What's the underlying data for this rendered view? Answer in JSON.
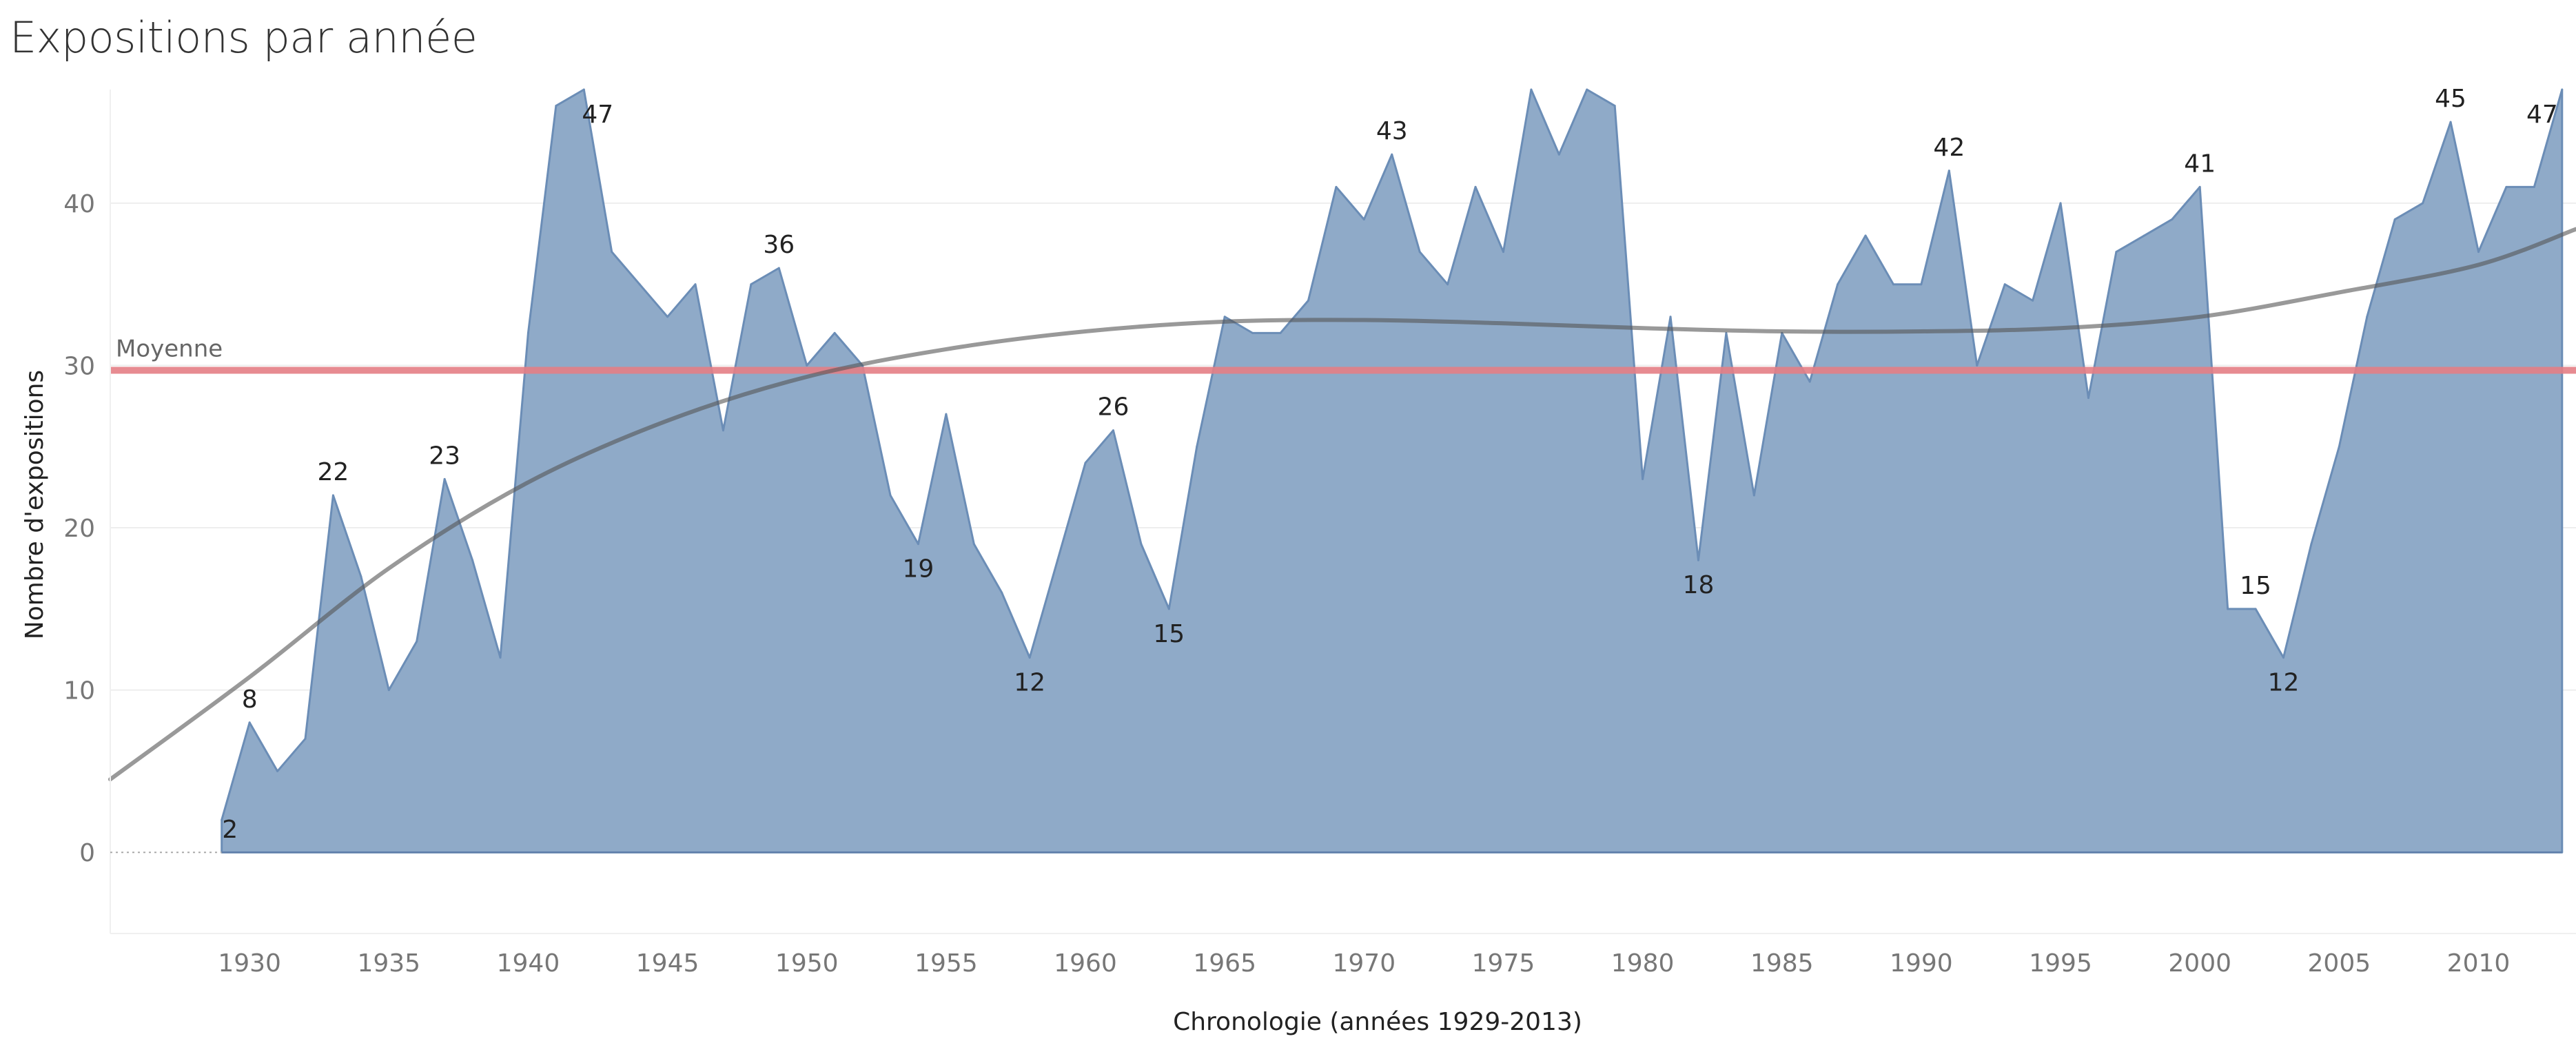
{
  "chart_data": {
    "type": "area",
    "title": "Expositions par année",
    "xlabel": "Chronologie (années 1929-2013)",
    "ylabel": "Nombre d'expositions",
    "xlim": [
      1925,
      2013.5
    ],
    "ylim": [
      -5,
      47
    ],
    "x_ticks": [
      1930,
      1935,
      1940,
      1945,
      1950,
      1955,
      1960,
      1965,
      1970,
      1975,
      1980,
      1985,
      1990,
      1995,
      2000,
      2005,
      2010
    ],
    "y_ticks": [
      0,
      10,
      20,
      30,
      40
    ],
    "grid": true,
    "colors": {
      "area_fill": "#8faac8",
      "area_line": "#6b8db6",
      "mean_line": "#e57f86",
      "trend_line": "#555555",
      "gridline": "#eeeeee"
    },
    "x": [
      1929,
      1930,
      1931,
      1932,
      1933,
      1934,
      1935,
      1936,
      1937,
      1938,
      1939,
      1940,
      1941,
      1942,
      1943,
      1944,
      1945,
      1946,
      1947,
      1948,
      1949,
      1950,
      1951,
      1952,
      1953,
      1954,
      1955,
      1956,
      1957,
      1958,
      1959,
      1960,
      1961,
      1962,
      1963,
      1964,
      1965,
      1966,
      1967,
      1968,
      1969,
      1970,
      1971,
      1972,
      1973,
      1974,
      1975,
      1976,
      1977,
      1978,
      1979,
      1980,
      1981,
      1982,
      1983,
      1984,
      1985,
      1986,
      1987,
      1988,
      1989,
      1990,
      1991,
      1992,
      1993,
      1994,
      1995,
      1996,
      1997,
      1998,
      1999,
      2000,
      2001,
      2002,
      2003,
      2004,
      2005,
      2006,
      2007,
      2008,
      2009,
      2010,
      2011,
      2012,
      2013
    ],
    "series": [
      {
        "values": [
          2,
          8,
          5,
          7,
          22,
          17,
          10,
          13,
          23,
          18,
          12,
          32,
          46,
          47,
          37,
          35,
          33,
          35,
          26,
          35,
          36,
          30,
          32,
          30,
          22,
          19,
          27,
          19,
          16,
          12,
          18,
          24,
          26,
          19,
          15,
          25,
          33,
          32,
          32,
          34,
          41,
          39,
          43,
          37,
          35,
          41,
          37,
          47,
          43,
          48,
          46,
          23,
          33,
          18,
          32,
          22,
          32,
          29,
          35,
          38,
          35,
          35,
          42,
          30,
          35,
          34,
          40,
          28,
          37,
          38,
          39,
          41,
          15,
          15,
          12,
          19,
          25,
          33,
          39,
          40,
          45,
          37,
          41,
          41,
          47
        ]
      }
    ],
    "data_labels": [
      {
        "x": 1929,
        "y": 2,
        "text": "2",
        "pos": "below"
      },
      {
        "x": 1930,
        "y": 8,
        "text": "8",
        "pos": "above"
      },
      {
        "x": 1933,
        "y": 22,
        "text": "22",
        "pos": "above"
      },
      {
        "x": 1937,
        "y": 23,
        "text": "23",
        "pos": "above"
      },
      {
        "x": 1942,
        "y": 47,
        "text": "47",
        "pos": "below"
      },
      {
        "x": 1949,
        "y": 36,
        "text": "36",
        "pos": "above"
      },
      {
        "x": 1954,
        "y": 19,
        "text": "19",
        "pos": "below"
      },
      {
        "x": 1958,
        "y": 12,
        "text": "12",
        "pos": "below"
      },
      {
        "x": 1961,
        "y": 26,
        "text": "26",
        "pos": "above"
      },
      {
        "x": 1963,
        "y": 15,
        "text": "15",
        "pos": "below"
      },
      {
        "x": 1971,
        "y": 43,
        "text": "43",
        "pos": "above"
      },
      {
        "x": 1982,
        "y": 18,
        "text": "18",
        "pos": "below"
      },
      {
        "x": 1991,
        "y": 42,
        "text": "42",
        "pos": "above"
      },
      {
        "x": 2000,
        "y": 41,
        "text": "41",
        "pos": "above"
      },
      {
        "x": 2002,
        "y": 15,
        "text": "15",
        "pos": "above"
      },
      {
        "x": 2003,
        "y": 12,
        "text": "12",
        "pos": "below"
      },
      {
        "x": 2009,
        "y": 45,
        "text": "45",
        "pos": "above"
      },
      {
        "x": 2013,
        "y": 47,
        "text": "47",
        "pos": "below-left"
      }
    ],
    "reference_line": {
      "label": "Moyenne",
      "value": 29.7
    },
    "trend_line": {
      "x": [
        1925,
        1930,
        1935,
        1940,
        1945,
        1950,
        1955,
        1960,
        1965,
        1970,
        1975,
        1980,
        1985,
        1990,
        1995,
        2000,
        2005,
        2010,
        2013.5
      ],
      "y": [
        4.5,
        10.8,
        17.5,
        22.8,
        26.6,
        29.3,
        31.0,
        32.1,
        32.7,
        32.8,
        32.6,
        32.3,
        32.1,
        32.1,
        32.3,
        33.0,
        34.5,
        36.2,
        38.4
      ]
    }
  }
}
